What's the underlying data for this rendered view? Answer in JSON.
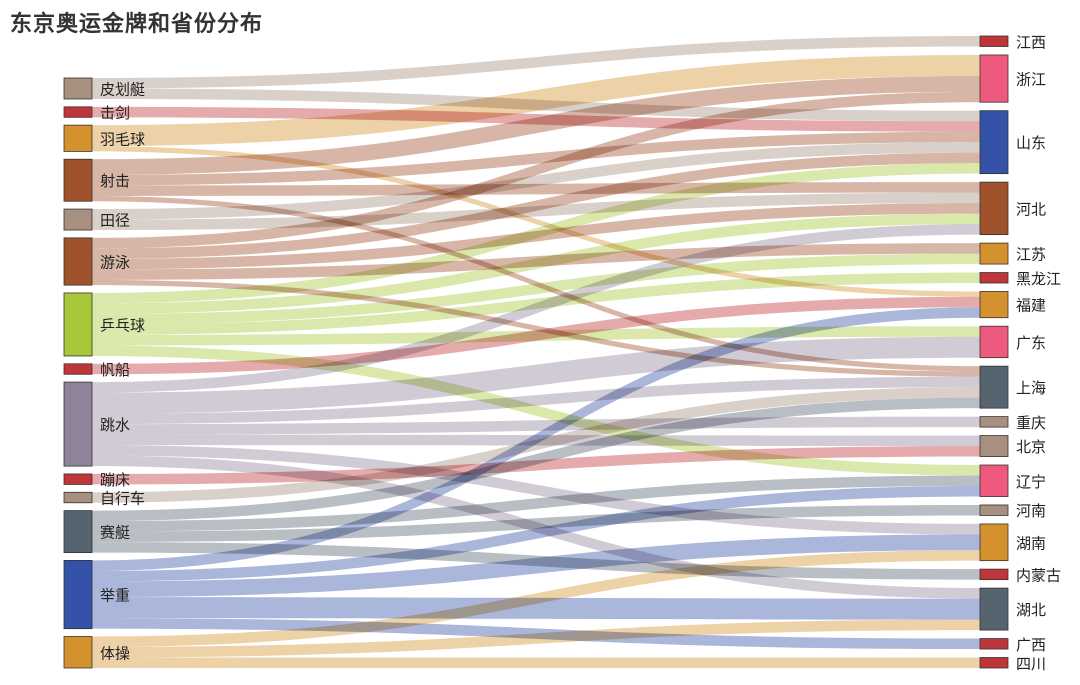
{
  "title": "东京奥运金牌和省份分布",
  "chart_data": {
    "type": "sankey",
    "title": "东京奥运金牌和省份分布",
    "colors": {
      "brown": "#a0522d",
      "taupe": "#a89080",
      "red": "#c0353a",
      "orange": "#d4922e",
      "lime": "#a8c83a",
      "mauve": "#8e8399",
      "slate": "#566470",
      "blue": "#3452a8",
      "pink": "#ee5a7e"
    },
    "sources": [
      {
        "name": "皮划艇",
        "color": "#a89080"
      },
      {
        "name": "击剑",
        "color": "#c0353a"
      },
      {
        "name": "羽毛球",
        "color": "#d4922e"
      },
      {
        "name": "射击",
        "color": "#a0522d"
      },
      {
        "name": "田径",
        "color": "#a89080"
      },
      {
        "name": "游泳",
        "color": "#a0522d"
      },
      {
        "name": "乒乓球",
        "color": "#a8c83a"
      },
      {
        "name": "帆船",
        "color": "#c0353a"
      },
      {
        "name": "跳水",
        "color": "#8e8399"
      },
      {
        "name": "蹦床",
        "color": "#c0353a"
      },
      {
        "name": "自行车",
        "color": "#a89080"
      },
      {
        "name": "赛艇",
        "color": "#566470"
      },
      {
        "name": "举重",
        "color": "#3452a8"
      },
      {
        "name": "体操",
        "color": "#d4922e"
      }
    ],
    "targets": [
      {
        "name": "江西",
        "color": "#c0353a"
      },
      {
        "name": "浙江",
        "color": "#ee5a7e"
      },
      {
        "name": "山东",
        "color": "#3452a8"
      },
      {
        "name": "河北",
        "color": "#a0522d"
      },
      {
        "name": "江苏",
        "color": "#d4922e"
      },
      {
        "name": "黑龙江",
        "color": "#c0353a"
      },
      {
        "name": "福建",
        "color": "#d4922e"
      },
      {
        "name": "广东",
        "color": "#ee5a7e"
      },
      {
        "name": "上海",
        "color": "#566470"
      },
      {
        "name": "重庆",
        "color": "#a89080"
      },
      {
        "name": "北京",
        "color": "#a89080"
      },
      {
        "name": "辽宁",
        "color": "#ee5a7e"
      },
      {
        "name": "河南",
        "color": "#a89080"
      },
      {
        "name": "湖南",
        "color": "#d4922e"
      },
      {
        "name": "内蒙古",
        "color": "#c0353a"
      },
      {
        "name": "湖北",
        "color": "#566470"
      },
      {
        "name": "广西",
        "color": "#c0353a"
      },
      {
        "name": "四川",
        "color": "#c0353a"
      }
    ],
    "links": [
      {
        "source": "皮划艇",
        "target": "江西",
        "value": 1
      },
      {
        "source": "皮划艇",
        "target": "山东",
        "value": 1
      },
      {
        "source": "击剑",
        "target": "山东",
        "value": 1
      },
      {
        "source": "羽毛球",
        "target": "浙江",
        "value": 2
      },
      {
        "source": "羽毛球",
        "target": "福建",
        "value": 0.5
      },
      {
        "source": "射击",
        "target": "浙江",
        "value": 1.5
      },
      {
        "source": "射击",
        "target": "山东",
        "value": 1
      },
      {
        "source": "射击",
        "target": "河北",
        "value": 1
      },
      {
        "source": "射击",
        "target": "上海",
        "value": 0.5
      },
      {
        "source": "田径",
        "target": "山东",
        "value": 1
      },
      {
        "source": "田径",
        "target": "河北",
        "value": 1
      },
      {
        "source": "游泳",
        "target": "浙江",
        "value": 1
      },
      {
        "source": "游泳",
        "target": "山东",
        "value": 1
      },
      {
        "source": "游泳",
        "target": "江苏",
        "value": 1
      },
      {
        "source": "游泳",
        "target": "河北",
        "value": 1
      },
      {
        "source": "游泳",
        "target": "上海",
        "value": 0.5
      },
      {
        "source": "乒乓球",
        "target": "山东",
        "value": 1
      },
      {
        "source": "乒乓球",
        "target": "河北",
        "value": 1
      },
      {
        "source": "乒乓球",
        "target": "江苏",
        "value": 1
      },
      {
        "source": "乒乓球",
        "target": "黑龙江",
        "value": 1
      },
      {
        "source": "乒乓球",
        "target": "广东",
        "value": 1
      },
      {
        "source": "乒乓球",
        "target": "辽宁",
        "value": 1
      },
      {
        "source": "帆船",
        "target": "福建",
        "value": 1
      },
      {
        "source": "跳水",
        "target": "河北",
        "value": 1
      },
      {
        "source": "跳水",
        "target": "广东",
        "value": 2
      },
      {
        "source": "跳水",
        "target": "上海",
        "value": 1
      },
      {
        "source": "跳水",
        "target": "重庆",
        "value": 1
      },
      {
        "source": "跳水",
        "target": "北京",
        "value": 1
      },
      {
        "source": "跳水",
        "target": "湖南",
        "value": 1
      },
      {
        "source": "跳水",
        "target": "湖北",
        "value": 1
      },
      {
        "source": "蹦床",
        "target": "北京",
        "value": 1
      },
      {
        "source": "自行车",
        "target": "上海",
        "value": 1
      },
      {
        "source": "赛艇",
        "target": "上海",
        "value": 1
      },
      {
        "source": "赛艇",
        "target": "辽宁",
        "value": 1
      },
      {
        "source": "赛艇",
        "target": "河南",
        "value": 1
      },
      {
        "source": "赛艇",
        "target": "内蒙古",
        "value": 1
      },
      {
        "source": "举重",
        "target": "福建",
        "value": 1
      },
      {
        "source": "举重",
        "target": "辽宁",
        "value": 1
      },
      {
        "source": "举重",
        "target": "湖南",
        "value": 1.5
      },
      {
        "source": "举重",
        "target": "湖北",
        "value": 2
      },
      {
        "source": "举重",
        "target": "广西",
        "value": 1
      },
      {
        "source": "体操",
        "target": "湖南",
        "value": 1
      },
      {
        "source": "体操",
        "target": "湖北",
        "value": 1
      },
      {
        "source": "体操",
        "target": "四川",
        "value": 1
      }
    ]
  }
}
